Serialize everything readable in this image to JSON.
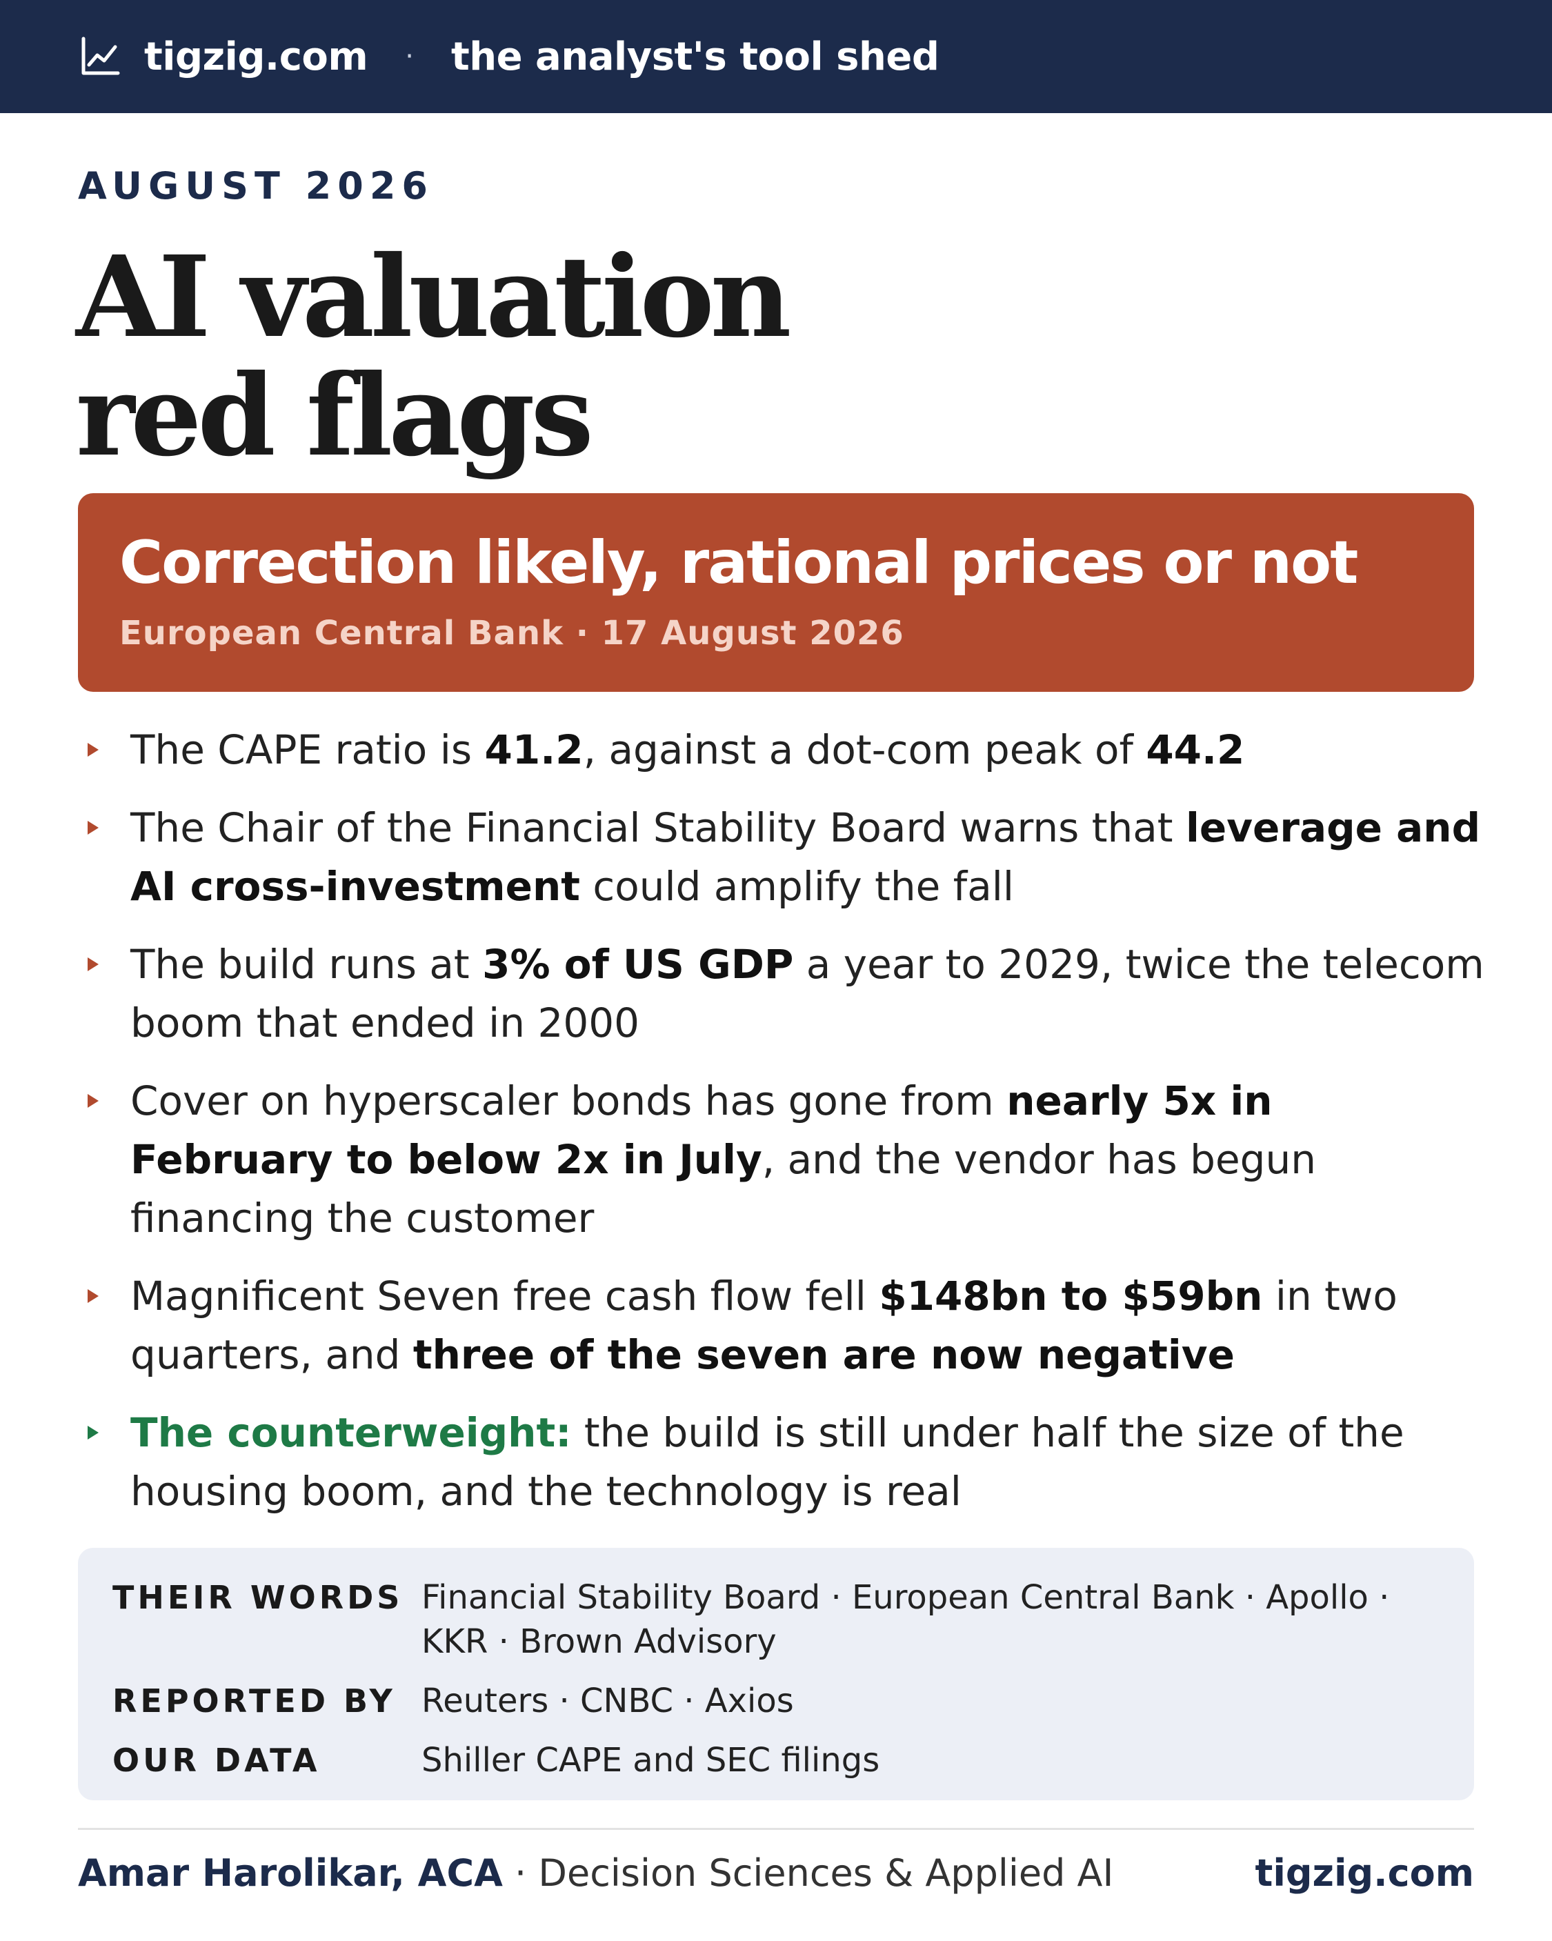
{
  "header": {
    "icon": "line-chart-icon",
    "site": "tigzig.com",
    "separator": "·",
    "tagline": "the analyst's tool shed",
    "background": "#1c2b4b"
  },
  "kicker": "AUGUST 2026",
  "title": {
    "line1": "AI valuation",
    "line2": "red flags"
  },
  "banner": {
    "headline": "Correction likely, rational prices or not",
    "source": "European Central Bank · 17 August 2026",
    "background": "#b14a2e"
  },
  "bullets": [
    {
      "t1": "The CAPE ratio is ",
      "b1": "41.2",
      "t2": ", against a dot-com peak of ",
      "b2": "44.2"
    },
    {
      "t1": "The Chair of the Financial Stability Board warns that ",
      "b1": "leverage and AI cross-investment",
      "t2": " could amplify the fall"
    },
    {
      "t1": "The build runs at ",
      "b1": "3% of US GDP",
      "t2": " a year to 2029, twice the telecom boom that ended in 2000"
    },
    {
      "t1": "Cover on hyperscaler bonds has gone from ",
      "b1": "nearly 5x in February to below 2x in July",
      "t2": ", and the vendor has begun financing the customer"
    },
    {
      "t1": "Magnificent Seven free cash flow fell ",
      "b1": "$148bn to $59bn",
      "t2": " in two quarters, and ",
      "b2": "three of the seven are now negative"
    },
    {
      "lead": "The counterweight:",
      "t1": " the build is still under half the size of the housing boom, and the technology is real"
    }
  ],
  "sources": {
    "their_words_label": "THEIR WORDS",
    "their_words": "Financial Stability Board · European Central Bank · Apollo · KKR · Brown Advisory",
    "reported_by_label": "REPORTED BY",
    "reported_by": "Reuters · CNBC · Axios",
    "our_data_label": "OUR DATA",
    "our_data": "Shiller CAPE and SEC filings"
  },
  "footer": {
    "author": "Amar Harolikar, ACA",
    "role": " · Decision Sciences & Applied AI",
    "site": "tigzig.com"
  },
  "colors": {
    "accent_red": "#b14a2e",
    "accent_green": "#1e7a46",
    "navy": "#1c2b4b"
  }
}
